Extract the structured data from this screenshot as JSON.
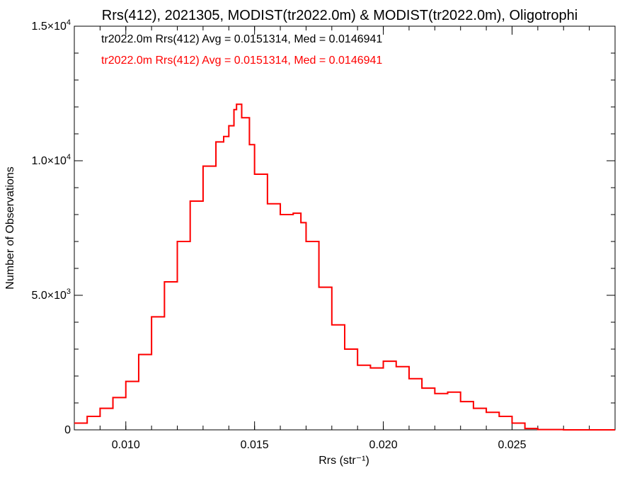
{
  "chart_data": {
    "type": "histogram",
    "title": "Rrs(412), 2021305, MODIST(tr2022.0m) & MODIST(tr2022.0m), Oligotrophi",
    "xlabel": "Rrs (str⁻¹)",
    "ylabel": "Number of Observations",
    "xlim": [
      0.008,
      0.029
    ],
    "ylim": [
      0,
      15000
    ],
    "x_ticks": [
      {
        "value": 0.01,
        "label": "0.010"
      },
      {
        "value": 0.015,
        "label": "0.015"
      },
      {
        "value": 0.02,
        "label": "0.020"
      },
      {
        "value": 0.025,
        "label": "0.025"
      }
    ],
    "y_ticks": [
      {
        "value": 0,
        "mant": "0",
        "exp": ""
      },
      {
        "value": 5000,
        "mant": "5.0×10",
        "exp": "3"
      },
      {
        "value": 10000,
        "mant": "1.0×10",
        "exp": "4"
      },
      {
        "value": 15000,
        "mant": "1.5×10",
        "exp": "4"
      }
    ],
    "legend": [
      {
        "text": "tr2022.0m Rrs(412) Avg = 0.0151314, Med = 0.0146941",
        "color": "#000000"
      },
      {
        "text": "tr2022.0m Rrs(412) Avg = 0.0151314, Med = 0.0146941",
        "color": "#ff0000"
      }
    ],
    "series": [
      {
        "color": "#000000",
        "x": [
          0.008,
          0.0085,
          0.009,
          0.0095,
          0.01,
          0.0105,
          0.011,
          0.0115,
          0.012,
          0.0125,
          0.013,
          0.0135,
          0.0138,
          0.014,
          0.0142,
          0.0143,
          0.0145,
          0.0148,
          0.015,
          0.0155,
          0.016,
          0.0165,
          0.0168,
          0.017,
          0.0175,
          0.018,
          0.0185,
          0.019,
          0.0195,
          0.02,
          0.0205,
          0.021,
          0.0215,
          0.022,
          0.0225,
          0.023,
          0.0235,
          0.024,
          0.0245,
          0.025,
          0.0255,
          0.026,
          0.027,
          0.028,
          0.029
        ],
        "y": [
          250,
          500,
          800,
          1200,
          1800,
          2800,
          4200,
          5500,
          7000,
          8500,
          9800,
          10700,
          10900,
          11300,
          11900,
          12100,
          11600,
          10600,
          9500,
          8400,
          8000,
          8050,
          7700,
          7000,
          5300,
          3900,
          3000,
          2400,
          2300,
          2550,
          2350,
          1900,
          1550,
          1350,
          1400,
          1050,
          800,
          650,
          500,
          250,
          50,
          10,
          0,
          0,
          0
        ]
      },
      {
        "color": "#ff0000",
        "x": [
          0.008,
          0.0085,
          0.009,
          0.0095,
          0.01,
          0.0105,
          0.011,
          0.0115,
          0.012,
          0.0125,
          0.013,
          0.0135,
          0.0138,
          0.014,
          0.0142,
          0.0143,
          0.0145,
          0.0148,
          0.015,
          0.0155,
          0.016,
          0.0165,
          0.0168,
          0.017,
          0.0175,
          0.018,
          0.0185,
          0.019,
          0.0195,
          0.02,
          0.0205,
          0.021,
          0.0215,
          0.022,
          0.0225,
          0.023,
          0.0235,
          0.024,
          0.0245,
          0.025,
          0.0255,
          0.026,
          0.027,
          0.028,
          0.029
        ],
        "y": [
          250,
          500,
          800,
          1200,
          1800,
          2800,
          4200,
          5500,
          7000,
          8500,
          9800,
          10700,
          10900,
          11300,
          11900,
          12100,
          11600,
          10600,
          9500,
          8400,
          8000,
          8050,
          7700,
          7000,
          5300,
          3900,
          3000,
          2400,
          2300,
          2550,
          2350,
          1900,
          1550,
          1350,
          1400,
          1050,
          800,
          650,
          500,
          250,
          50,
          10,
          0,
          0,
          0
        ]
      }
    ]
  }
}
